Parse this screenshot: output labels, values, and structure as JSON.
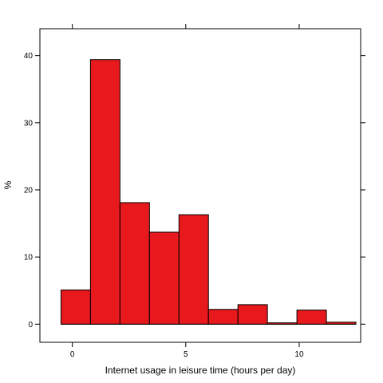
{
  "chart_data": {
    "type": "bar",
    "subtype": "histogram",
    "title": "",
    "xlabel": "Internet usage in leisure time (hours per day)",
    "ylabel": "%",
    "bar_color": "#E8191D",
    "bar_edge_color": "#000000",
    "x_tick_labels": [
      "0",
      "5",
      "10"
    ],
    "x_ticks": [
      0,
      5,
      10
    ],
    "y_tick_labels": [
      "0",
      "10",
      "20",
      "30",
      "40"
    ],
    "y_ticks": [
      0,
      10,
      20,
      30,
      40
    ],
    "xlim": [
      -1.43,
      12.71
    ],
    "ylim": [
      -2.7,
      44.0
    ],
    "grid": false,
    "bins": [
      {
        "x0": -0.5,
        "x1": 0.8,
        "value": 5.1
      },
      {
        "x0": 0.8,
        "x1": 2.1,
        "value": 39.4
      },
      {
        "x0": 2.1,
        "x1": 3.4,
        "value": 18.1
      },
      {
        "x0": 3.4,
        "x1": 4.7,
        "value": 13.7
      },
      {
        "x0": 4.7,
        "x1": 6.0,
        "value": 16.3
      },
      {
        "x0": 6.0,
        "x1": 7.3,
        "value": 2.2
      },
      {
        "x0": 7.3,
        "x1": 8.6,
        "value": 2.9
      },
      {
        "x0": 8.6,
        "x1": 9.9,
        "value": 0.2
      },
      {
        "x0": 9.9,
        "x1": 11.2,
        "value": 2.1
      },
      {
        "x0": 11.2,
        "x1": 12.5,
        "value": 0.3
      }
    ]
  }
}
